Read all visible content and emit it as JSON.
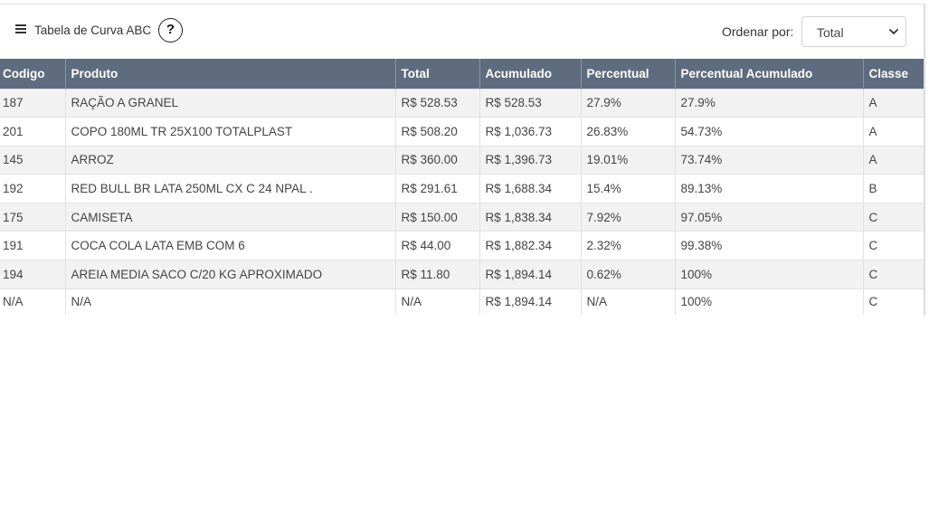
{
  "header": {
    "title": "Tabela de Curva ABC",
    "help_label": "?",
    "sort_label": "Ordenar por:",
    "sort_value": "Total"
  },
  "table": {
    "columns": [
      "Codigo",
      "Produto",
      "Total",
      "Acumulado",
      "Percentual",
      "Percentual Acumulado",
      "Classe"
    ],
    "rows": [
      [
        "187",
        "RAÇÃO A GRANEL",
        "R$ 528.53",
        "R$ 528.53",
        "27.9%",
        "27.9%",
        "A"
      ],
      [
        "201",
        "COPO 180ML TR 25X100 TOTALPLAST",
        "R$ 508.20",
        "R$ 1,036.73",
        "26.83%",
        "54.73%",
        "A"
      ],
      [
        "145",
        "ARROZ",
        "R$ 360.00",
        "R$ 1,396.73",
        "19.01%",
        "73.74%",
        "A"
      ],
      [
        "192",
        "RED BULL BR LATA 250ML CX C 24 NPAL .",
        "R$ 291.61",
        "R$ 1,688.34",
        "15.4%",
        "89.13%",
        "B"
      ],
      [
        "175",
        "CAMISETA",
        "R$ 150.00",
        "R$ 1,838.34",
        "7.92%",
        "97.05%",
        "C"
      ],
      [
        "191",
        "COCA COLA LATA EMB COM 6",
        "R$ 44.00",
        "R$ 1,882.34",
        "2.32%",
        "99.38%",
        "C"
      ],
      [
        "194",
        "AREIA MEDIA SACO C/20 KG APROXIMADO",
        "R$ 11.80",
        "R$ 1,894.14",
        "0.62%",
        "100%",
        "C"
      ],
      [
        "N/A",
        "N/A",
        "N/A",
        "R$ 1,894.14",
        "N/A",
        "100%",
        "C"
      ]
    ]
  },
  "colors": {
    "header_bg": "#5f6b7e",
    "stripe_bg": "#f2f2f2"
  }
}
